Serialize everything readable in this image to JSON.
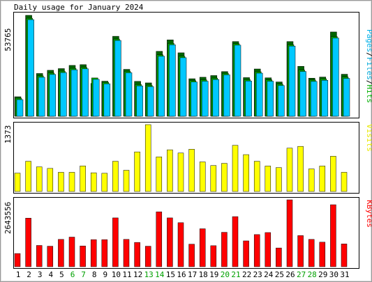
{
  "colors": {
    "background": "#ffffff",
    "panel_border": "#000000",
    "pages": "#00c8ff",
    "files": "#00b000",
    "hits": "#006400",
    "visits": "#ffff00",
    "kbytes": "#ff0000",
    "weekend_label": "#00a000",
    "weekday_label": "#000000"
  },
  "chart_data": [
    {
      "type": "bar",
      "title": "Daily usage for January 2024",
      "ytick": "53765",
      "legend": [
        "Pages",
        "/",
        "Files",
        "/",
        "Hits"
      ],
      "categories": [
        "1",
        "2",
        "3",
        "4",
        "5",
        "6",
        "7",
        "8",
        "9",
        "10",
        "11",
        "12",
        "13",
        "14",
        "15",
        "16",
        "17",
        "18",
        "19",
        "20",
        "21",
        "22",
        "23",
        "24",
        "25",
        "26",
        "27",
        "28",
        "29",
        "30",
        "31"
      ],
      "weekend_days": [
        "6",
        "7",
        "13",
        "14",
        "20",
        "21",
        "27",
        "28"
      ],
      "ylim": [
        0,
        53765
      ],
      "series": [
        {
          "name": "Hits",
          "values": [
            10400,
            53765,
            22800,
            24500,
            25400,
            27100,
            27500,
            17500,
            18700,
            42600,
            25000,
            18600,
            17800,
            34600,
            40700,
            33800,
            20000,
            20800,
            21700,
            23800,
            39800,
            20600,
            25200,
            20500,
            18300,
            39800,
            26600,
            20300,
            20900,
            44900,
            22400
          ]
        },
        {
          "name": "Files",
          "values": [
            10000,
            52600,
            21900,
            23400,
            24400,
            25900,
            26400,
            20800,
            18400,
            41500,
            24300,
            17300,
            16900,
            33100,
            39200,
            32300,
            19400,
            19800,
            20700,
            23200,
            39000,
            19900,
            24100,
            19800,
            17500,
            38500,
            25000,
            19700,
            20300,
            42800,
            21300
          ]
        },
        {
          "name": "Pages",
          "values": [
            10000,
            52600,
            21900,
            23400,
            24400,
            25900,
            26400,
            20800,
            18400,
            41500,
            24300,
            17300,
            16900,
            33100,
            39200,
            32300,
            19400,
            19800,
            20700,
            23200,
            39000,
            19900,
            24100,
            19800,
            17500,
            38500,
            25000,
            19700,
            20300,
            42800,
            21300
          ]
        }
      ]
    },
    {
      "type": "bar",
      "ytick": "1373",
      "legend": [
        "Visits"
      ],
      "categories": [
        "1",
        "2",
        "3",
        "4",
        "5",
        "6",
        "7",
        "8",
        "9",
        "10",
        "11",
        "12",
        "13",
        "14",
        "15",
        "16",
        "17",
        "18",
        "19",
        "20",
        "21",
        "22",
        "23",
        "24",
        "25",
        "26",
        "27",
        "28",
        "29",
        "30",
        "31"
      ],
      "ylim": [
        0,
        1373
      ],
      "series": [
        {
          "name": "Visits",
          "values": [
            377,
            621,
            506,
            474,
            394,
            394,
            525,
            384,
            374,
            621,
            436,
            813,
            1373,
            711,
            856,
            790,
            868,
            608,
            533,
            578,
            948,
            757,
            621,
            523,
            491,
            890,
            927,
            464,
            523,
            724,
            394
          ]
        }
      ]
    },
    {
      "type": "bar",
      "ytick": "2643556",
      "legend": [
        "KBytes"
      ],
      "categories": [
        "1",
        "2",
        "3",
        "4",
        "5",
        "6",
        "7",
        "8",
        "9",
        "10",
        "11",
        "12",
        "13",
        "14",
        "15",
        "16",
        "17",
        "18",
        "19",
        "20",
        "21",
        "22",
        "23",
        "24",
        "25",
        "26",
        "27",
        "28",
        "29",
        "30",
        "31"
      ],
      "ylim": [
        0,
        2643556
      ],
      "series": [
        {
          "name": "KBytes",
          "values": [
            520000,
            1920000,
            840000,
            810000,
            1080000,
            1170000,
            820000,
            1070000,
            1070000,
            1930000,
            1080000,
            960000,
            810000,
            2170000,
            1930000,
            1740000,
            890000,
            1500000,
            830000,
            1360000,
            1980000,
            1020000,
            1270000,
            1350000,
            740000,
            2643556,
            1230000,
            1080000,
            970000,
            2450000,
            900000
          ]
        }
      ]
    }
  ],
  "xaxis": {
    "labels": [
      "1",
      "2",
      "3",
      "4",
      "5",
      "6",
      "7",
      "8",
      "9",
      "10",
      "11",
      "12",
      "13",
      "14",
      "15",
      "16",
      "17",
      "18",
      "19",
      "20",
      "21",
      "22",
      "23",
      "24",
      "25",
      "26",
      "27",
      "28",
      "29",
      "30",
      "31"
    ],
    "weekend_days": [
      "6",
      "7",
      "13",
      "14",
      "20",
      "21",
      "27",
      "28"
    ]
  }
}
